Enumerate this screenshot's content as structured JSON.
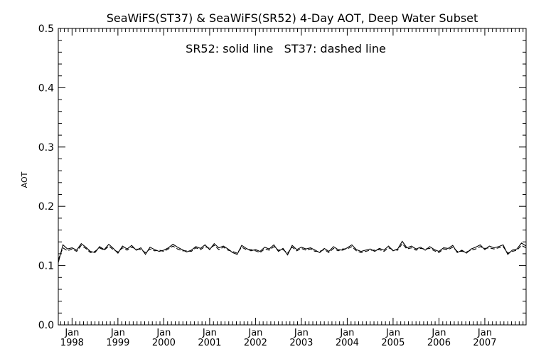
{
  "chart_data": {
    "type": "line",
    "title": "SeaWiFS(ST37) & SeaWiFS(SR52) 4-Day AOT, Deep Water Subset",
    "annotation": "SR52: solid line   ST37: dashed line",
    "xlabel": "",
    "ylabel": "AOT",
    "xlim": [
      1997.7,
      2007.9
    ],
    "ylim": [
      0.0,
      0.5
    ],
    "grid": false,
    "yticks": [
      "0.0",
      "0.1",
      "0.2",
      "0.3",
      "0.4",
      "0.5"
    ],
    "xticks": [
      {
        "x": 1998,
        "month": "Jan",
        "year": "1998"
      },
      {
        "x": 1999,
        "month": "Jan",
        "year": "1999"
      },
      {
        "x": 2000,
        "month": "Jan",
        "year": "2000"
      },
      {
        "x": 2001,
        "month": "Jan",
        "year": "2001"
      },
      {
        "x": 2002,
        "month": "Jan",
        "year": "2002"
      },
      {
        "x": 2003,
        "month": "Jan",
        "year": "2003"
      },
      {
        "x": 2004,
        "month": "Jan",
        "year": "2004"
      },
      {
        "x": 2005,
        "month": "Jan",
        "year": "2005"
      },
      {
        "x": 2006,
        "month": "Jan",
        "year": "2006"
      },
      {
        "x": 2007,
        "month": "Jan",
        "year": "2007"
      }
    ],
    "series": [
      {
        "style": "solid",
        "x": [
          1997.7,
          1997.8,
          1997.9,
          1998.0,
          1998.1,
          1998.2,
          1998.3,
          1998.4,
          1998.5,
          1998.6,
          1998.7,
          1998.8,
          1998.9,
          1999.0,
          1999.1,
          1999.2,
          1999.3,
          1999.4,
          1999.5,
          1999.6,
          1999.7,
          1999.8,
          1999.9,
          2000.0,
          2000.1,
          2000.2,
          2000.3,
          2000.4,
          2000.5,
          2000.6,
          2000.7,
          2000.8,
          2000.9,
          2001.0,
          2001.1,
          2001.2,
          2001.3,
          2001.4,
          2001.5,
          2001.6,
          2001.7,
          2001.8,
          2001.9,
          2002.0,
          2002.1,
          2002.2,
          2002.3,
          2002.4,
          2002.5,
          2002.6,
          2002.7,
          2002.8,
          2002.9,
          2003.0,
          2003.1,
          2003.2,
          2003.3,
          2003.4,
          2003.5,
          2003.6,
          2003.7,
          2003.8,
          2003.9,
          2004.0,
          2004.1,
          2004.2,
          2004.3,
          2004.4,
          2004.5,
          2004.6,
          2004.7,
          2004.8,
          2004.9,
          2005.0,
          2005.1,
          2005.2,
          2005.3,
          2005.4,
          2005.5,
          2005.6,
          2005.7,
          2005.8,
          2005.9,
          2006.0,
          2006.1,
          2006.2,
          2006.3,
          2006.4,
          2006.5,
          2006.6,
          2006.7,
          2006.8,
          2006.9,
          2007.0,
          2007.1,
          2007.2,
          2007.3,
          2007.4,
          2007.5,
          2007.6,
          2007.7,
          2007.8,
          2007.9
        ],
        "y": [
          0.105,
          0.135,
          0.128,
          0.13,
          0.126,
          0.137,
          0.131,
          0.124,
          0.122,
          0.132,
          0.127,
          0.136,
          0.129,
          0.121,
          0.133,
          0.128,
          0.134,
          0.126,
          0.13,
          0.119,
          0.131,
          0.127,
          0.124,
          0.126,
          0.13,
          0.136,
          0.131,
          0.127,
          0.123,
          0.126,
          0.132,
          0.129,
          0.135,
          0.127,
          0.137,
          0.13,
          0.133,
          0.128,
          0.122,
          0.119,
          0.134,
          0.129,
          0.125,
          0.127,
          0.124,
          0.131,
          0.128,
          0.135,
          0.124,
          0.129,
          0.118,
          0.134,
          0.127,
          0.131,
          0.128,
          0.13,
          0.126,
          0.122,
          0.129,
          0.124,
          0.132,
          0.127,
          0.126,
          0.13,
          0.135,
          0.127,
          0.124,
          0.126,
          0.128,
          0.124,
          0.129,
          0.126,
          0.133,
          0.125,
          0.128,
          0.141,
          0.13,
          0.133,
          0.128,
          0.131,
          0.126,
          0.132,
          0.127,
          0.124,
          0.13,
          0.129,
          0.134,
          0.122,
          0.126,
          0.121,
          0.128,
          0.131,
          0.135,
          0.127,
          0.133,
          0.13,
          0.132,
          0.135,
          0.119,
          0.126,
          0.128,
          0.138,
          0.133
        ]
      },
      {
        "style": "dashed",
        "x": [
          1997.7,
          1997.8,
          1997.9,
          1998.0,
          1998.1,
          1998.2,
          1998.3,
          1998.4,
          1998.5,
          1998.6,
          1998.7,
          1998.8,
          1998.9,
          1999.0,
          1999.1,
          1999.2,
          1999.3,
          1999.4,
          1999.5,
          1999.6,
          1999.7,
          1999.8,
          1999.9,
          2000.0,
          2000.1,
          2000.2,
          2000.3,
          2000.4,
          2000.5,
          2000.6,
          2000.7,
          2000.8,
          2000.9,
          2001.0,
          2001.1,
          2001.2,
          2001.3,
          2001.4,
          2001.5,
          2001.6,
          2001.7,
          2001.8,
          2001.9,
          2002.0,
          2002.1,
          2002.2,
          2002.3,
          2002.4,
          2002.5,
          2002.6,
          2002.7,
          2002.8,
          2002.9,
          2003.0,
          2003.1,
          2003.2,
          2003.3,
          2003.4,
          2003.5,
          2003.6,
          2003.7,
          2003.8,
          2003.9,
          2004.0,
          2004.1,
          2004.2,
          2004.3,
          2004.4,
          2004.5,
          2004.6,
          2004.7,
          2004.8,
          2004.9,
          2005.0,
          2005.1,
          2005.2,
          2005.3,
          2005.4,
          2005.5,
          2005.6,
          2005.7,
          2005.8,
          2005.9,
          2006.0,
          2006.1,
          2006.2,
          2006.3,
          2006.4,
          2006.5,
          2006.6,
          2006.7,
          2006.8,
          2006.9,
          2007.0,
          2007.1,
          2007.2,
          2007.3,
          2007.4,
          2007.5,
          2007.6,
          2007.7,
          2007.8,
          2007.9
        ],
        "y": [
          0.11,
          0.13,
          0.125,
          0.128,
          0.124,
          0.134,
          0.129,
          0.122,
          0.124,
          0.13,
          0.126,
          0.133,
          0.127,
          0.123,
          0.13,
          0.126,
          0.131,
          0.128,
          0.127,
          0.122,
          0.128,
          0.125,
          0.126,
          0.124,
          0.128,
          0.133,
          0.128,
          0.125,
          0.125,
          0.124,
          0.13,
          0.127,
          0.132,
          0.129,
          0.134,
          0.127,
          0.131,
          0.126,
          0.124,
          0.121,
          0.131,
          0.127,
          0.127,
          0.125,
          0.122,
          0.128,
          0.126,
          0.132,
          0.126,
          0.127,
          0.121,
          0.131,
          0.125,
          0.129,
          0.126,
          0.128,
          0.124,
          0.124,
          0.127,
          0.122,
          0.129,
          0.125,
          0.128,
          0.128,
          0.132,
          0.125,
          0.122,
          0.124,
          0.126,
          0.126,
          0.127,
          0.124,
          0.13,
          0.127,
          0.126,
          0.137,
          0.128,
          0.13,
          0.126,
          0.129,
          0.128,
          0.129,
          0.125,
          0.122,
          0.128,
          0.127,
          0.131,
          0.124,
          0.124,
          0.123,
          0.126,
          0.128,
          0.132,
          0.129,
          0.13,
          0.128,
          0.13,
          0.132,
          0.121,
          0.124,
          0.126,
          0.134,
          0.13
        ]
      }
    ]
  }
}
